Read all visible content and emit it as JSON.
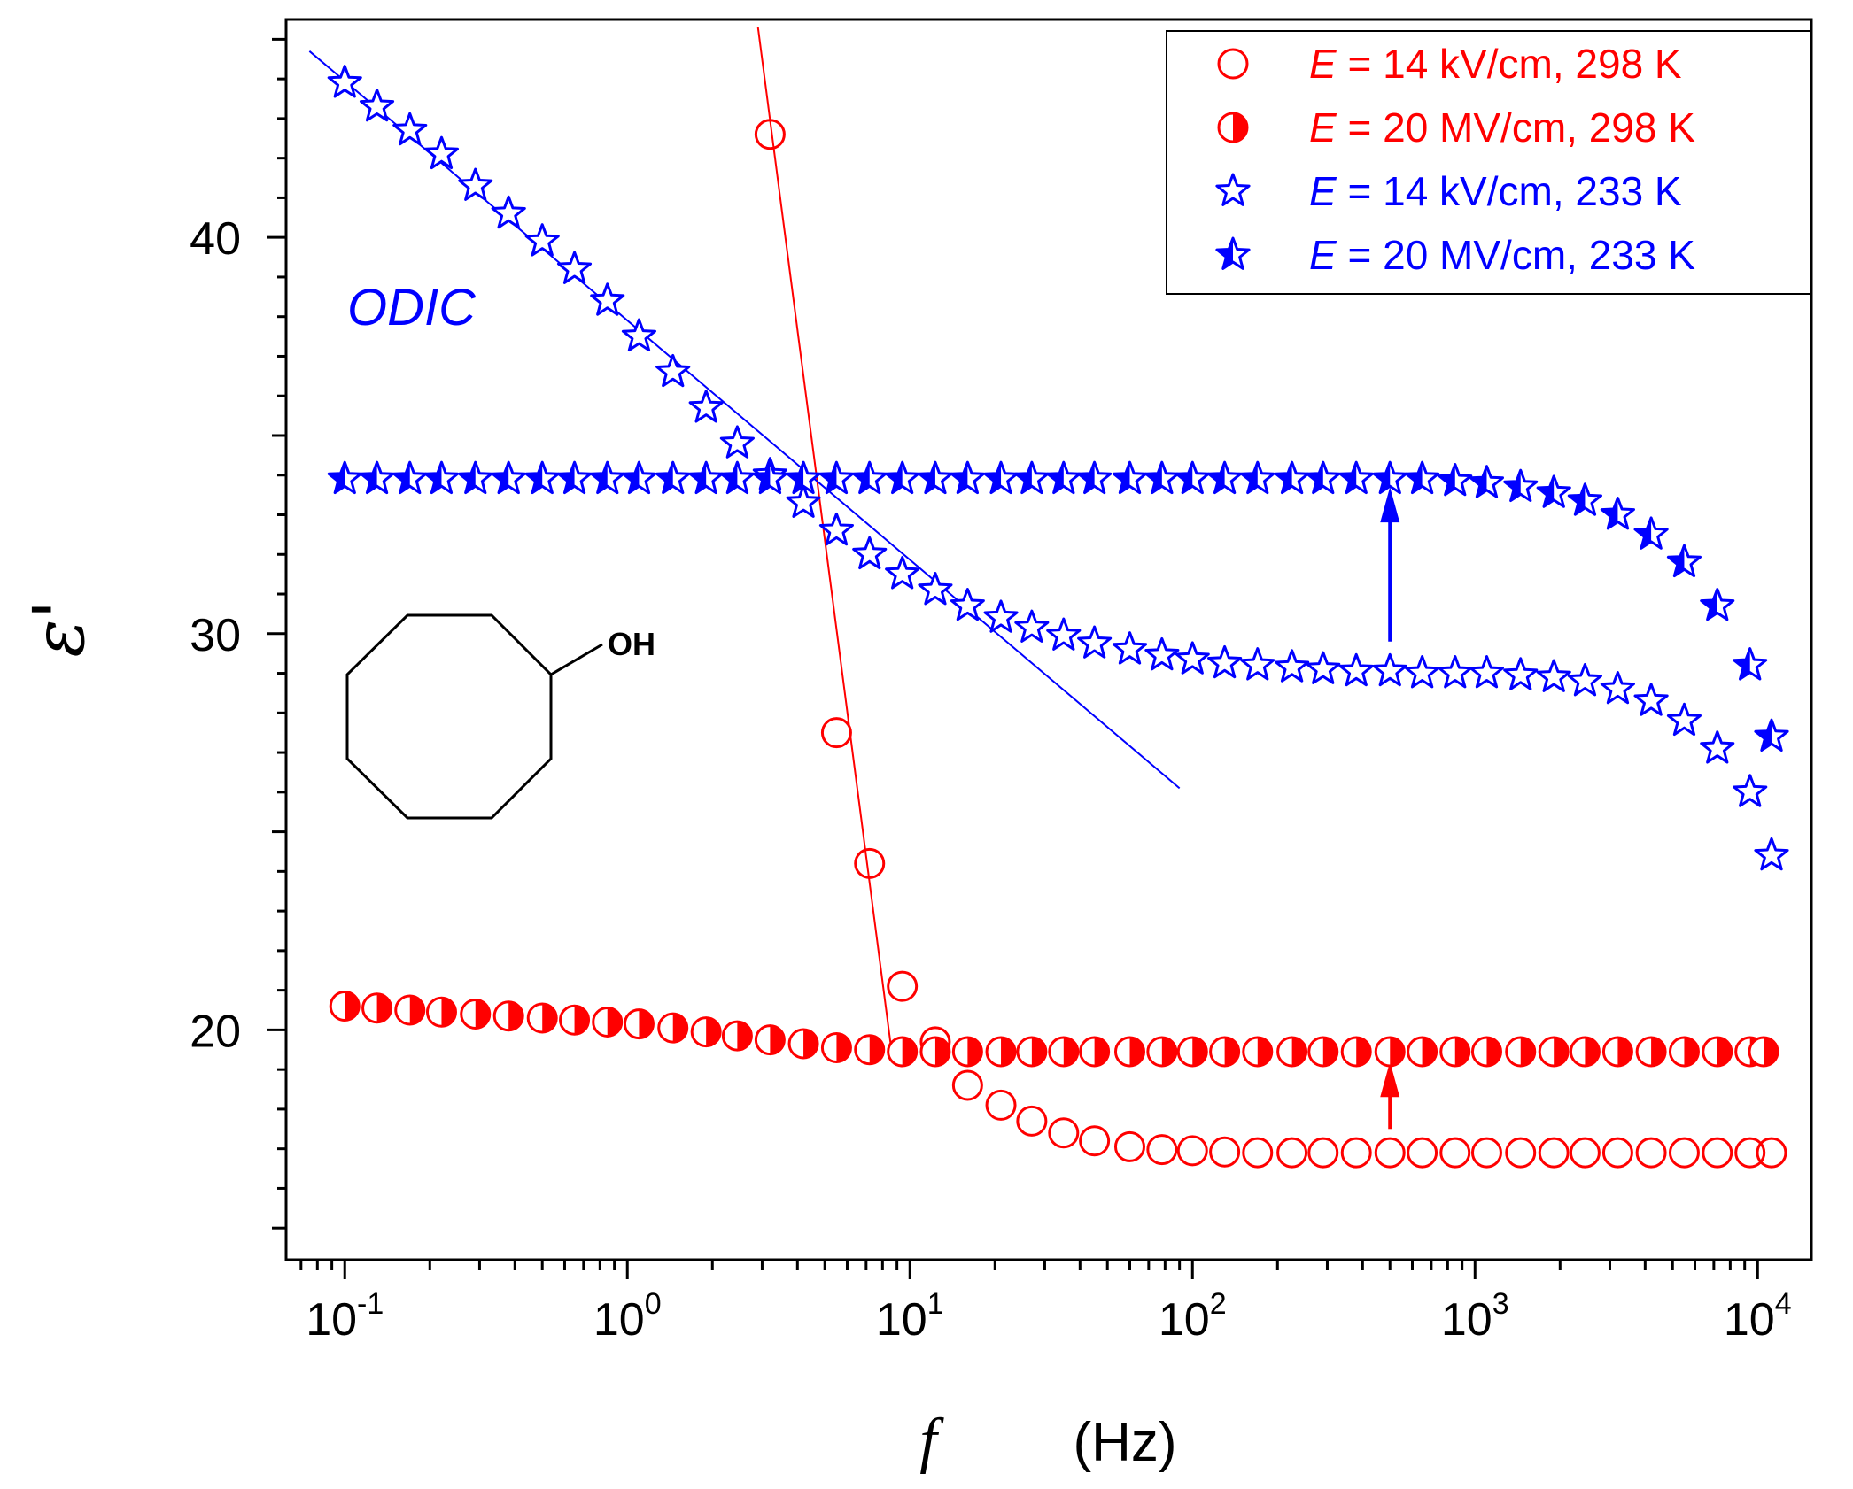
{
  "chart_data": {
    "type": "scatter",
    "title": "",
    "xlabel": {
      "symbol": "f",
      "unit": "(Hz)"
    },
    "ylabel": "ε'",
    "xscale": "log",
    "xlim": [
      0.062,
      15500
    ],
    "ylim": [
      14.2,
      45.5
    ],
    "x_ticks": [
      {
        "base": "10",
        "exp": "-1",
        "value": 0.1
      },
      {
        "base": "10",
        "exp": "0",
        "value": 1
      },
      {
        "base": "10",
        "exp": "1",
        "value": 10
      },
      {
        "base": "10",
        "exp": "2",
        "value": 100
      },
      {
        "base": "10",
        "exp": "3",
        "value": 1000
      },
      {
        "base": "10",
        "exp": "4",
        "value": 10000
      }
    ],
    "y_ticks": [
      {
        "label": "20",
        "value": 20
      },
      {
        "label": "30",
        "value": 30
      },
      {
        "label": "40",
        "value": 40
      }
    ],
    "series": [
      {
        "name": "E = 14 kV/cm, 298 K",
        "legend_italic": "E",
        "legend_rest": " = 14 kV/cm, 298 K",
        "marker": "circle-open",
        "color": "#ff0000",
        "points": [
          [
            3.2,
            42.6
          ],
          [
            5.5,
            27.5
          ],
          [
            7.2,
            24.2
          ],
          [
            9.4,
            21.1
          ],
          [
            12.3,
            19.7
          ],
          [
            16,
            18.6
          ],
          [
            21,
            18.1
          ],
          [
            27,
            17.7
          ],
          [
            35,
            17.4
          ],
          [
            45,
            17.2
          ],
          [
            60,
            17.05
          ],
          [
            78,
            16.98
          ],
          [
            100,
            16.95
          ],
          [
            130,
            16.92
          ],
          [
            170,
            16.9
          ],
          [
            225,
            16.9
          ],
          [
            290,
            16.9
          ],
          [
            380,
            16.9
          ],
          [
            500,
            16.9
          ],
          [
            650,
            16.9
          ],
          [
            850,
            16.9
          ],
          [
            1100,
            16.9
          ],
          [
            1450,
            16.9
          ],
          [
            1900,
            16.9
          ],
          [
            2450,
            16.9
          ],
          [
            3200,
            16.9
          ],
          [
            4200,
            16.9
          ],
          [
            5500,
            16.9
          ],
          [
            7200,
            16.9
          ],
          [
            9400,
            16.9
          ],
          [
            11200,
            16.9
          ]
        ]
      },
      {
        "name": "E = 20 MV/cm, 298 K",
        "legend_italic": "E",
        "legend_rest": " = 20 MV/cm, 298 K",
        "marker": "circle-half",
        "color": "#ff0000",
        "points": [
          [
            0.1,
            20.6
          ],
          [
            0.13,
            20.55
          ],
          [
            0.17,
            20.5
          ],
          [
            0.22,
            20.45
          ],
          [
            0.29,
            20.4
          ],
          [
            0.38,
            20.35
          ],
          [
            0.5,
            20.3
          ],
          [
            0.65,
            20.25
          ],
          [
            0.85,
            20.2
          ],
          [
            1.1,
            20.15
          ],
          [
            1.45,
            20.05
          ],
          [
            1.9,
            19.95
          ],
          [
            2.45,
            19.85
          ],
          [
            3.2,
            19.75
          ],
          [
            4.2,
            19.65
          ],
          [
            5.5,
            19.55
          ],
          [
            7.2,
            19.5
          ],
          [
            9.4,
            19.45
          ],
          [
            12.3,
            19.45
          ],
          [
            16,
            19.45
          ],
          [
            21,
            19.45
          ],
          [
            27,
            19.45
          ],
          [
            35,
            19.45
          ],
          [
            45,
            19.45
          ],
          [
            60,
            19.45
          ],
          [
            78,
            19.45
          ],
          [
            100,
            19.45
          ],
          [
            130,
            19.45
          ],
          [
            170,
            19.45
          ],
          [
            225,
            19.45
          ],
          [
            290,
            19.45
          ],
          [
            380,
            19.45
          ],
          [
            500,
            19.45
          ],
          [
            650,
            19.45
          ],
          [
            850,
            19.45
          ],
          [
            1100,
            19.45
          ],
          [
            1450,
            19.45
          ],
          [
            1900,
            19.45
          ],
          [
            2450,
            19.45
          ],
          [
            3200,
            19.45
          ],
          [
            4200,
            19.45
          ],
          [
            5500,
            19.45
          ],
          [
            7200,
            19.45
          ],
          [
            9400,
            19.45
          ],
          [
            10500,
            19.45
          ]
        ]
      },
      {
        "name": "E = 14 kV/cm, 233 K",
        "legend_italic": "E",
        "legend_rest": " = 14 kV/cm, 233 K",
        "marker": "star-open",
        "color": "#0000ff",
        "points": [
          [
            0.1,
            43.9
          ],
          [
            0.13,
            43.3
          ],
          [
            0.17,
            42.7
          ],
          [
            0.22,
            42.1
          ],
          [
            0.29,
            41.3
          ],
          [
            0.38,
            40.6
          ],
          [
            0.5,
            39.9
          ],
          [
            0.65,
            39.2
          ],
          [
            0.85,
            38.4
          ],
          [
            1.1,
            37.5
          ],
          [
            1.45,
            36.6
          ],
          [
            1.9,
            35.7
          ],
          [
            2.45,
            34.8
          ],
          [
            3.2,
            34.0
          ],
          [
            4.2,
            33.3
          ],
          [
            5.5,
            32.6
          ],
          [
            7.2,
            32.0
          ],
          [
            9.4,
            31.5
          ],
          [
            12.3,
            31.1
          ],
          [
            16,
            30.7
          ],
          [
            21,
            30.4
          ],
          [
            27,
            30.15
          ],
          [
            35,
            29.95
          ],
          [
            45,
            29.75
          ],
          [
            60,
            29.6
          ],
          [
            78,
            29.45
          ],
          [
            100,
            29.35
          ],
          [
            130,
            29.25
          ],
          [
            170,
            29.2
          ],
          [
            225,
            29.15
          ],
          [
            290,
            29.1
          ],
          [
            380,
            29.05
          ],
          [
            500,
            29.05
          ],
          [
            650,
            29.0
          ],
          [
            850,
            29.0
          ],
          [
            1100,
            29.0
          ],
          [
            1450,
            28.95
          ],
          [
            1900,
            28.9
          ],
          [
            2450,
            28.8
          ],
          [
            3200,
            28.6
          ],
          [
            4200,
            28.3
          ],
          [
            5500,
            27.8
          ],
          [
            7200,
            27.1
          ],
          [
            9400,
            26.0
          ],
          [
            11200,
            24.4
          ]
        ]
      },
      {
        "name": "E = 20 MV/cm, 233 K",
        "legend_italic": "E",
        "legend_rest": " = 20 MV/cm, 233 K",
        "marker": "star-filled",
        "color": "#0000ff",
        "points": [
          [
            0.1,
            33.9
          ],
          [
            0.13,
            33.9
          ],
          [
            0.17,
            33.9
          ],
          [
            0.22,
            33.9
          ],
          [
            0.29,
            33.9
          ],
          [
            0.38,
            33.9
          ],
          [
            0.5,
            33.9
          ],
          [
            0.65,
            33.9
          ],
          [
            0.85,
            33.9
          ],
          [
            1.1,
            33.9
          ],
          [
            1.45,
            33.9
          ],
          [
            1.9,
            33.9
          ],
          [
            2.45,
            33.9
          ],
          [
            3.2,
            33.9
          ],
          [
            4.2,
            33.9
          ],
          [
            5.5,
            33.9
          ],
          [
            7.2,
            33.9
          ],
          [
            9.4,
            33.9
          ],
          [
            12.3,
            33.9
          ],
          [
            16,
            33.9
          ],
          [
            21,
            33.9
          ],
          [
            27,
            33.9
          ],
          [
            35,
            33.9
          ],
          [
            45,
            33.9
          ],
          [
            60,
            33.9
          ],
          [
            78,
            33.9
          ],
          [
            100,
            33.9
          ],
          [
            130,
            33.9
          ],
          [
            170,
            33.9
          ],
          [
            225,
            33.9
          ],
          [
            290,
            33.9
          ],
          [
            380,
            33.9
          ],
          [
            500,
            33.9
          ],
          [
            650,
            33.9
          ],
          [
            850,
            33.85
          ],
          [
            1100,
            33.8
          ],
          [
            1450,
            33.7
          ],
          [
            1900,
            33.55
          ],
          [
            2450,
            33.35
          ],
          [
            3200,
            33.0
          ],
          [
            4200,
            32.5
          ],
          [
            5500,
            31.8
          ],
          [
            7200,
            30.7
          ],
          [
            9400,
            29.2
          ],
          [
            11200,
            27.4
          ]
        ]
      }
    ],
    "fit_lines": [
      {
        "color": "#ff0000",
        "from": [
          2.9,
          45.3
        ],
        "to": [
          8.6,
          19.5
        ]
      },
      {
        "color": "#0000ff",
        "from": [
          0.075,
          44.7
        ],
        "to": [
          90,
          26.1
        ]
      }
    ],
    "arrows": [
      {
        "color": "#0000ff",
        "x": 500,
        "from_y": 29.8,
        "to_y": 33.7
      },
      {
        "color": "#ff0000",
        "x": 500,
        "from_y": 17.5,
        "to_y": 19.2
      }
    ],
    "annotations": [
      {
        "text": "ODIC",
        "x": 0.1,
        "y": 36.2,
        "color": "#0000ff",
        "italic": true
      }
    ],
    "molecule_label": "OH",
    "legend_position": "top-right"
  }
}
